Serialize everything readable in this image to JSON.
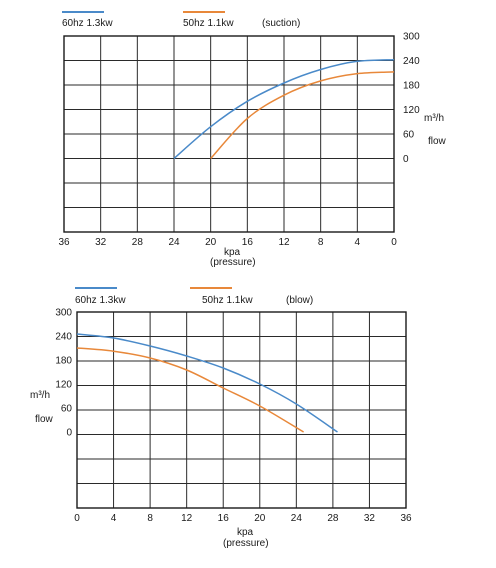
{
  "colors": {
    "series_60hz": "#4a8ac9",
    "series_50hz": "#e8883a",
    "grid": "#2a2a2a"
  },
  "chart_data": [
    {
      "type": "line",
      "mode_label": "(suction)",
      "xlabel": "kpa",
      "xlabel_sub": "(pressure)",
      "ylabel": "m³/h",
      "ylabel_sub": "flow",
      "x_axis_reversed": true,
      "xlim": [
        0,
        36
      ],
      "ylim": [
        0,
        300
      ],
      "x_ticks": [
        36,
        32,
        28,
        24,
        20,
        16,
        12,
        8,
        4,
        0
      ],
      "y_ticks": [
        300,
        240,
        180,
        120,
        60,
        0
      ],
      "grid": true,
      "legend_position": "top",
      "series": [
        {
          "name": "60hz 1.3kw",
          "x": [
            24,
            20,
            16,
            12,
            8,
            4,
            0
          ],
          "y": [
            0,
            78,
            140,
            185,
            218,
            238,
            242
          ]
        },
        {
          "name": "50hz  1.1kw",
          "x": [
            20,
            16,
            12,
            8,
            4,
            0
          ],
          "y": [
            0,
            98,
            155,
            190,
            208,
            212
          ]
        }
      ]
    },
    {
      "type": "line",
      "mode_label": "(blow)",
      "xlabel": "kpa",
      "xlabel_sub": "(pressure)",
      "ylabel": "m³/h",
      "ylabel_sub": "flow",
      "x_axis_reversed": false,
      "xlim": [
        0,
        36
      ],
      "ylim": [
        0,
        300
      ],
      "x_ticks": [
        0,
        4,
        8,
        12,
        16,
        20,
        24,
        28,
        32,
        36
      ],
      "y_ticks": [
        300,
        240,
        180,
        120,
        60,
        0
      ],
      "grid": true,
      "legend_position": "top",
      "series": [
        {
          "name": "60hz 1.3kw",
          "x": [
            0,
            4,
            8,
            12,
            16,
            20,
            24,
            28.5
          ],
          "y": [
            245,
            235,
            215,
            190,
            160,
            120,
            70,
            0
          ]
        },
        {
          "name": "50hz  1.1kw",
          "x": [
            0,
            4,
            8,
            12,
            16,
            20,
            24.8
          ],
          "y": [
            210,
            202,
            185,
            155,
            110,
            65,
            0
          ]
        }
      ]
    }
  ]
}
